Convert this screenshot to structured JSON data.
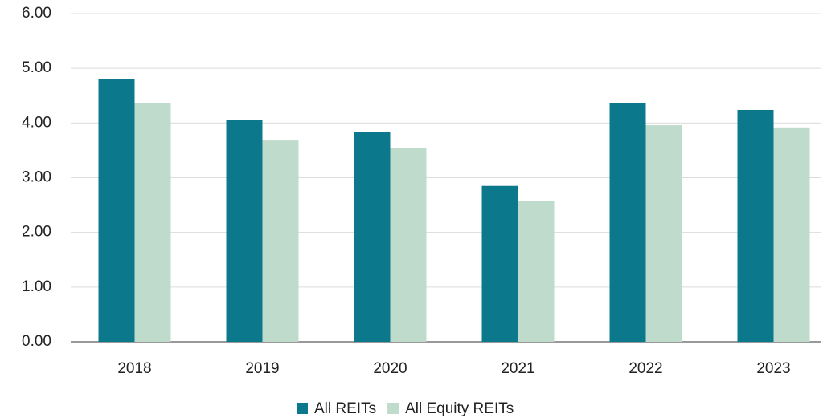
{
  "chart_data": {
    "type": "bar",
    "categories": [
      "2018",
      "2019",
      "2020",
      "2021",
      "2022",
      "2023"
    ],
    "series": [
      {
        "name": "All REITs",
        "color": "#0b788c",
        "values": [
          4.8,
          4.05,
          3.83,
          2.85,
          4.36,
          4.24
        ]
      },
      {
        "name": "All Equity REITs",
        "color": "#bfdbcc",
        "values": [
          4.36,
          3.68,
          3.55,
          2.58,
          3.96,
          3.92
        ]
      }
    ],
    "ylim": [
      0,
      6
    ],
    "yticks": [
      {
        "value": 0,
        "label": "0.00"
      },
      {
        "value": 1,
        "label": "1.00"
      },
      {
        "value": 2,
        "label": "2.00"
      },
      {
        "value": 3,
        "label": "3.00"
      },
      {
        "value": 4,
        "label": "4.00"
      },
      {
        "value": 5,
        "label": "5.00"
      },
      {
        "value": 6,
        "label": "6.00"
      }
    ],
    "grid": true,
    "legend": "bottom"
  }
}
